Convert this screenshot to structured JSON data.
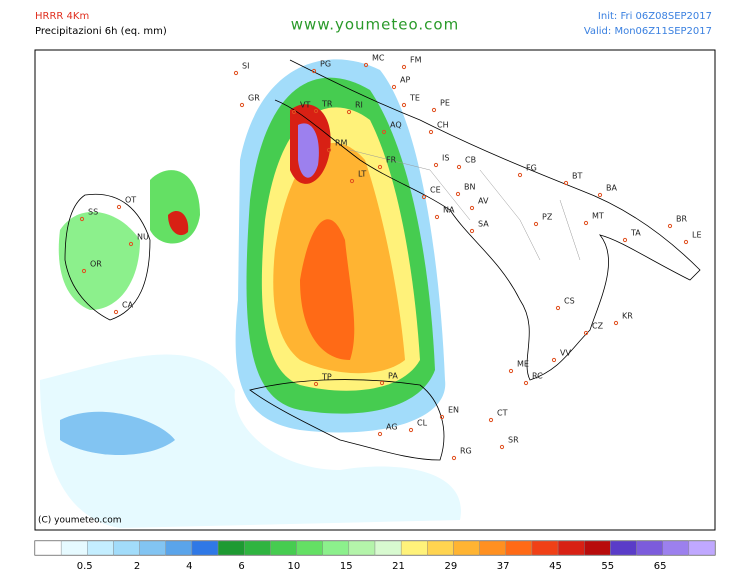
{
  "header": {
    "model": "HRRR 4Km",
    "product": "Precipitazioni 6h (eq. mm)",
    "site": "www.youmeteo.com",
    "init": "Init: Fri 06Z08SEP2017",
    "valid": "Valid: Mon06Z11SEP2017"
  },
  "copyright": "(C) youmeteo.com",
  "cities": [
    "SI",
    "GR",
    "PG",
    "MC",
    "AP",
    "FM",
    "TE",
    "PE",
    "VT",
    "TR",
    "RI",
    "AQ",
    "CH",
    "RM",
    "IS",
    "CB",
    "FG",
    "FR",
    "LT",
    "CE",
    "BN",
    "BT",
    "BA",
    "SS",
    "OT",
    "NU",
    "NA",
    "AV",
    "SA",
    "PZ",
    "MT",
    "BR",
    "LE",
    "TA",
    "OR",
    "CA",
    "CS",
    "KR",
    "CZ",
    "VV",
    "ME",
    "RC",
    "TP",
    "PA",
    "EN",
    "CT",
    "AG",
    "CL",
    "SR",
    "RG"
  ],
  "legend": {
    "ticks": [
      0.5,
      2,
      4,
      6,
      10,
      15,
      21,
      29,
      37,
      45,
      55,
      65
    ],
    "colors": [
      "#ffffff",
      "#e6faff",
      "#c4eeff",
      "#a2dcfa",
      "#82c4f2",
      "#5aa4ea",
      "#2f78e6",
      "#1e9a32",
      "#2fb440",
      "#46cc50",
      "#64e064",
      "#8cf08c",
      "#b4f4aa",
      "#d8fad0",
      "#fff27a",
      "#ffd450",
      "#ffb432",
      "#ff9020",
      "#ff6a16",
      "#f04016",
      "#d82014",
      "#b80c0c",
      "#5a3cc8",
      "#7c5cdc",
      "#9c80ee",
      "#c0a8ff"
    ]
  }
}
